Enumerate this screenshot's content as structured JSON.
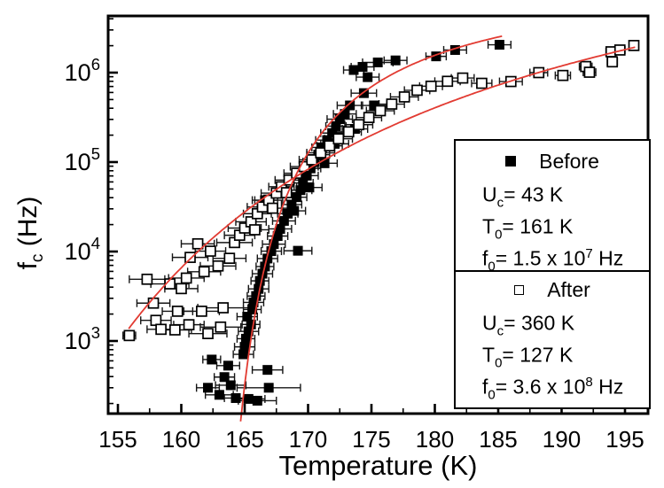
{
  "figure": {
    "background": "#ffffff"
  },
  "axes": {
    "x": {
      "title": "Temperature (K)",
      "min": 155,
      "max": 195,
      "major_ticks": [
        155,
        160,
        165,
        170,
        175,
        180,
        185,
        190,
        195
      ],
      "minor_step": 2.5
    },
    "y": {
      "title_base": "f",
      "title_sub": "c",
      "title_rest": " (Hz)",
      "scale": "log",
      "tick_exponents": [
        3,
        4,
        5,
        6
      ]
    }
  },
  "chart_data": {
    "type": "scatter",
    "title": "",
    "xlabel": "Temperature (K)",
    "ylabel": "f_c (Hz)",
    "x_range": [
      154.2,
      196.8
    ],
    "y_range_hz": [
      150,
      4300000
    ],
    "grid": false,
    "legend_position": "inside-right",
    "fit_color": "#e23b32",
    "marker_color": "#000000",
    "series": [
      {
        "name": "Before",
        "marker": "filled-square",
        "fit": {
          "Uc_K": 43,
          "T0_K": 161,
          "f0_Hz": 15000000
        },
        "curve_T_range": [
          164.68,
          185.3
        ],
        "points": [
          [
            162.1,
            300,
            0.9
          ],
          [
            162.4,
            620,
            0.7
          ],
          [
            163.0,
            250,
            1.1
          ],
          [
            163.4,
            395,
            0.8
          ],
          [
            163.7,
            530,
            0.9
          ],
          [
            163.9,
            320,
            1.2
          ],
          [
            164.3,
            230,
            0.9
          ],
          [
            164.9,
            710,
            0.8
          ],
          [
            165.3,
            225,
            1.3
          ],
          [
            166.0,
            215,
            1.5
          ],
          [
            166.9,
            300,
            2.5
          ],
          [
            166.8,
            475,
            1.2
          ],
          [
            165.0,
            860,
            0.8
          ],
          [
            165.1,
            1060,
            0.7
          ],
          [
            165.3,
            1280,
            0.8
          ],
          [
            165.5,
            1530,
            0.7
          ],
          [
            165.2,
            1870,
            0.8
          ],
          [
            165.6,
            2250,
            0.7
          ],
          [
            165.7,
            2700,
            0.8
          ],
          [
            165.9,
            3180,
            0.7
          ],
          [
            166.1,
            3820,
            0.8
          ],
          [
            166.2,
            4700,
            0.7
          ],
          [
            166.4,
            5650,
            0.8
          ],
          [
            166.6,
            6800,
            0.7
          ],
          [
            166.8,
            8350,
            0.8
          ],
          [
            167.1,
            10100,
            0.8
          ],
          [
            167.3,
            12100,
            0.9
          ],
          [
            167.6,
            14900,
            0.8
          ],
          [
            167.8,
            17900,
            0.9
          ],
          [
            166.6,
            37500,
            1.0
          ],
          [
            168.1,
            22000,
            0.9
          ],
          [
            168.4,
            26500,
            0.8
          ],
          [
            168.9,
            28500,
            0.9
          ],
          [
            169.2,
            10200,
            1.1
          ],
          [
            168.7,
            33500,
            0.8
          ],
          [
            169.1,
            40500,
            0.8
          ],
          [
            169.4,
            48500,
            0.9
          ],
          [
            169.6,
            58500,
            0.8
          ],
          [
            169.9,
            70500,
            0.9
          ],
          [
            170.1,
            52000,
            1.0
          ],
          [
            170.2,
            85000,
            0.8
          ],
          [
            170.5,
            101000,
            0.9
          ],
          [
            170.8,
            121000,
            0.9
          ],
          [
            171.1,
            146000,
            0.8
          ],
          [
            171.3,
            97000,
            1.0
          ],
          [
            171.5,
            176000,
            0.9
          ],
          [
            171.9,
            211000,
            0.9
          ],
          [
            172.1,
            160000,
            1.1
          ],
          [
            172.2,
            252000,
            0.8
          ],
          [
            172.5,
            302000,
            1.0
          ],
          [
            172.9,
            345000,
            0.9
          ],
          [
            173.3,
            430000,
            1.0
          ],
          [
            173.7,
            235000,
            1.0
          ],
          [
            173.6,
            1070000,
            0.8
          ],
          [
            174.3,
            1160000,
            0.9
          ],
          [
            174.4,
            590000,
            1.0
          ],
          [
            174.7,
            890000,
            0.9
          ],
          [
            175.2,
            430000,
            1.0
          ],
          [
            175.5,
            1300000,
            1.2
          ],
          [
            176.9,
            1370000,
            0.9
          ],
          [
            180.1,
            1520000,
            0.8
          ],
          [
            181.6,
            1790000,
            0.9
          ],
          [
            185.1,
            2050000,
            0.9
          ]
        ]
      },
      {
        "name": "After",
        "marker": "open-square",
        "fit": {
          "Uc_K": 360,
          "T0_K": 127,
          "f0_Hz": 360000000
        },
        "curve_T_range": [
          155.85,
          195.8
        ],
        "points": [
          [
            155.9,
            1150,
            0.5
          ],
          [
            157.3,
            4900,
            1.4
          ],
          [
            157.8,
            2650,
            1.3
          ],
          [
            158.0,
            1700,
            1.2
          ],
          [
            158.4,
            1350,
            1.1
          ],
          [
            159.1,
            4350,
            1.5
          ],
          [
            159.5,
            1330,
            1.3
          ],
          [
            159.7,
            2150,
            1.2
          ],
          [
            160.0,
            3850,
            1.3
          ],
          [
            160.4,
            5050,
            1.4
          ],
          [
            160.6,
            1520,
            1.2
          ],
          [
            160.7,
            8600,
            1.4
          ],
          [
            161.3,
            12200,
            1.3
          ],
          [
            161.6,
            2150,
            1.4
          ],
          [
            161.8,
            5950,
            1.3
          ],
          [
            162.1,
            1210,
            1.5
          ],
          [
            162.3,
            10100,
            1.2
          ],
          [
            162.9,
            6900,
            1.4
          ],
          [
            163.1,
            1430,
            1.6
          ],
          [
            163.3,
            2350,
            2.0
          ],
          [
            163.8,
            8400,
            1.3
          ],
          [
            164.2,
            12600,
            1.4
          ],
          [
            164.6,
            15200,
            1.2
          ],
          [
            165.0,
            18300,
            1.3
          ],
          [
            165.5,
            21500,
            1.2
          ],
          [
            165.8,
            17500,
            1.1
          ],
          [
            166.0,
            26500,
            1.1
          ],
          [
            166.4,
            31500,
            1.2
          ],
          [
            166.9,
            37500,
            1.1
          ],
          [
            167.2,
            30500,
            1.2
          ],
          [
            167.5,
            45000,
            1.2
          ],
          [
            167.9,
            53000,
            1.0
          ],
          [
            168.3,
            45500,
            1.1
          ],
          [
            168.5,
            63000,
            1.1
          ],
          [
            169.1,
            75000,
            1.0
          ],
          [
            169.7,
            89000,
            1.1
          ],
          [
            170.3,
            106000,
            1.0
          ],
          [
            171.0,
            127000,
            1.1
          ],
          [
            171.7,
            152000,
            1.0
          ],
          [
            172.4,
            182000,
            1.1
          ],
          [
            173.2,
            218000,
            1.0
          ],
          [
            174.0,
            262000,
            1.1
          ],
          [
            174.8,
            315000,
            1.0
          ],
          [
            175.7,
            375000,
            1.1
          ],
          [
            176.6,
            445000,
            1.0
          ],
          [
            177.6,
            535000,
            1.1
          ],
          [
            178.6,
            635000,
            1.0
          ],
          [
            179.7,
            705000,
            0.9
          ],
          [
            181.0,
            800000,
            1.0
          ],
          [
            182.2,
            870000,
            0.9
          ],
          [
            183.7,
            760000,
            0.8
          ],
          [
            186.0,
            795000,
            0.9
          ],
          [
            188.2,
            1000000,
            0.7
          ],
          [
            190.1,
            930000,
            0.6
          ],
          [
            191.9,
            1170000,
            0.5
          ],
          [
            192.2,
            1010000,
            0.5
          ],
          [
            193.9,
            1710000,
            0.4
          ],
          [
            194.0,
            1320000,
            0.4
          ],
          [
            194.6,
            1790000,
            0.4
          ],
          [
            195.7,
            2010000,
            0.3
          ]
        ]
      }
    ]
  },
  "legend": {
    "sections": [
      {
        "marker": "filled-square",
        "label": "Before",
        "params": [
          {
            "base": "U",
            "sub": "c",
            "mid": "= 43 K",
            "sup": "",
            "tail": ""
          },
          {
            "base": "T",
            "sub": "0",
            "mid": "= 161 K",
            "sup": "",
            "tail": ""
          },
          {
            "base": "f",
            "sub": "0",
            "mid": "= 1.5 x 10",
            "sup": "7",
            "tail": " Hz"
          }
        ]
      },
      {
        "marker": "open-square",
        "label": "After",
        "params": [
          {
            "base": "U",
            "sub": "c",
            "mid": "= 360 K",
            "sup": "",
            "tail": ""
          },
          {
            "base": "T",
            "sub": "0",
            "mid": "= 127 K",
            "sup": "",
            "tail": ""
          },
          {
            "base": "f",
            "sub": "0",
            "mid": "= 3.6 x 10",
            "sup": "8",
            "tail": " Hz"
          }
        ]
      }
    ]
  }
}
